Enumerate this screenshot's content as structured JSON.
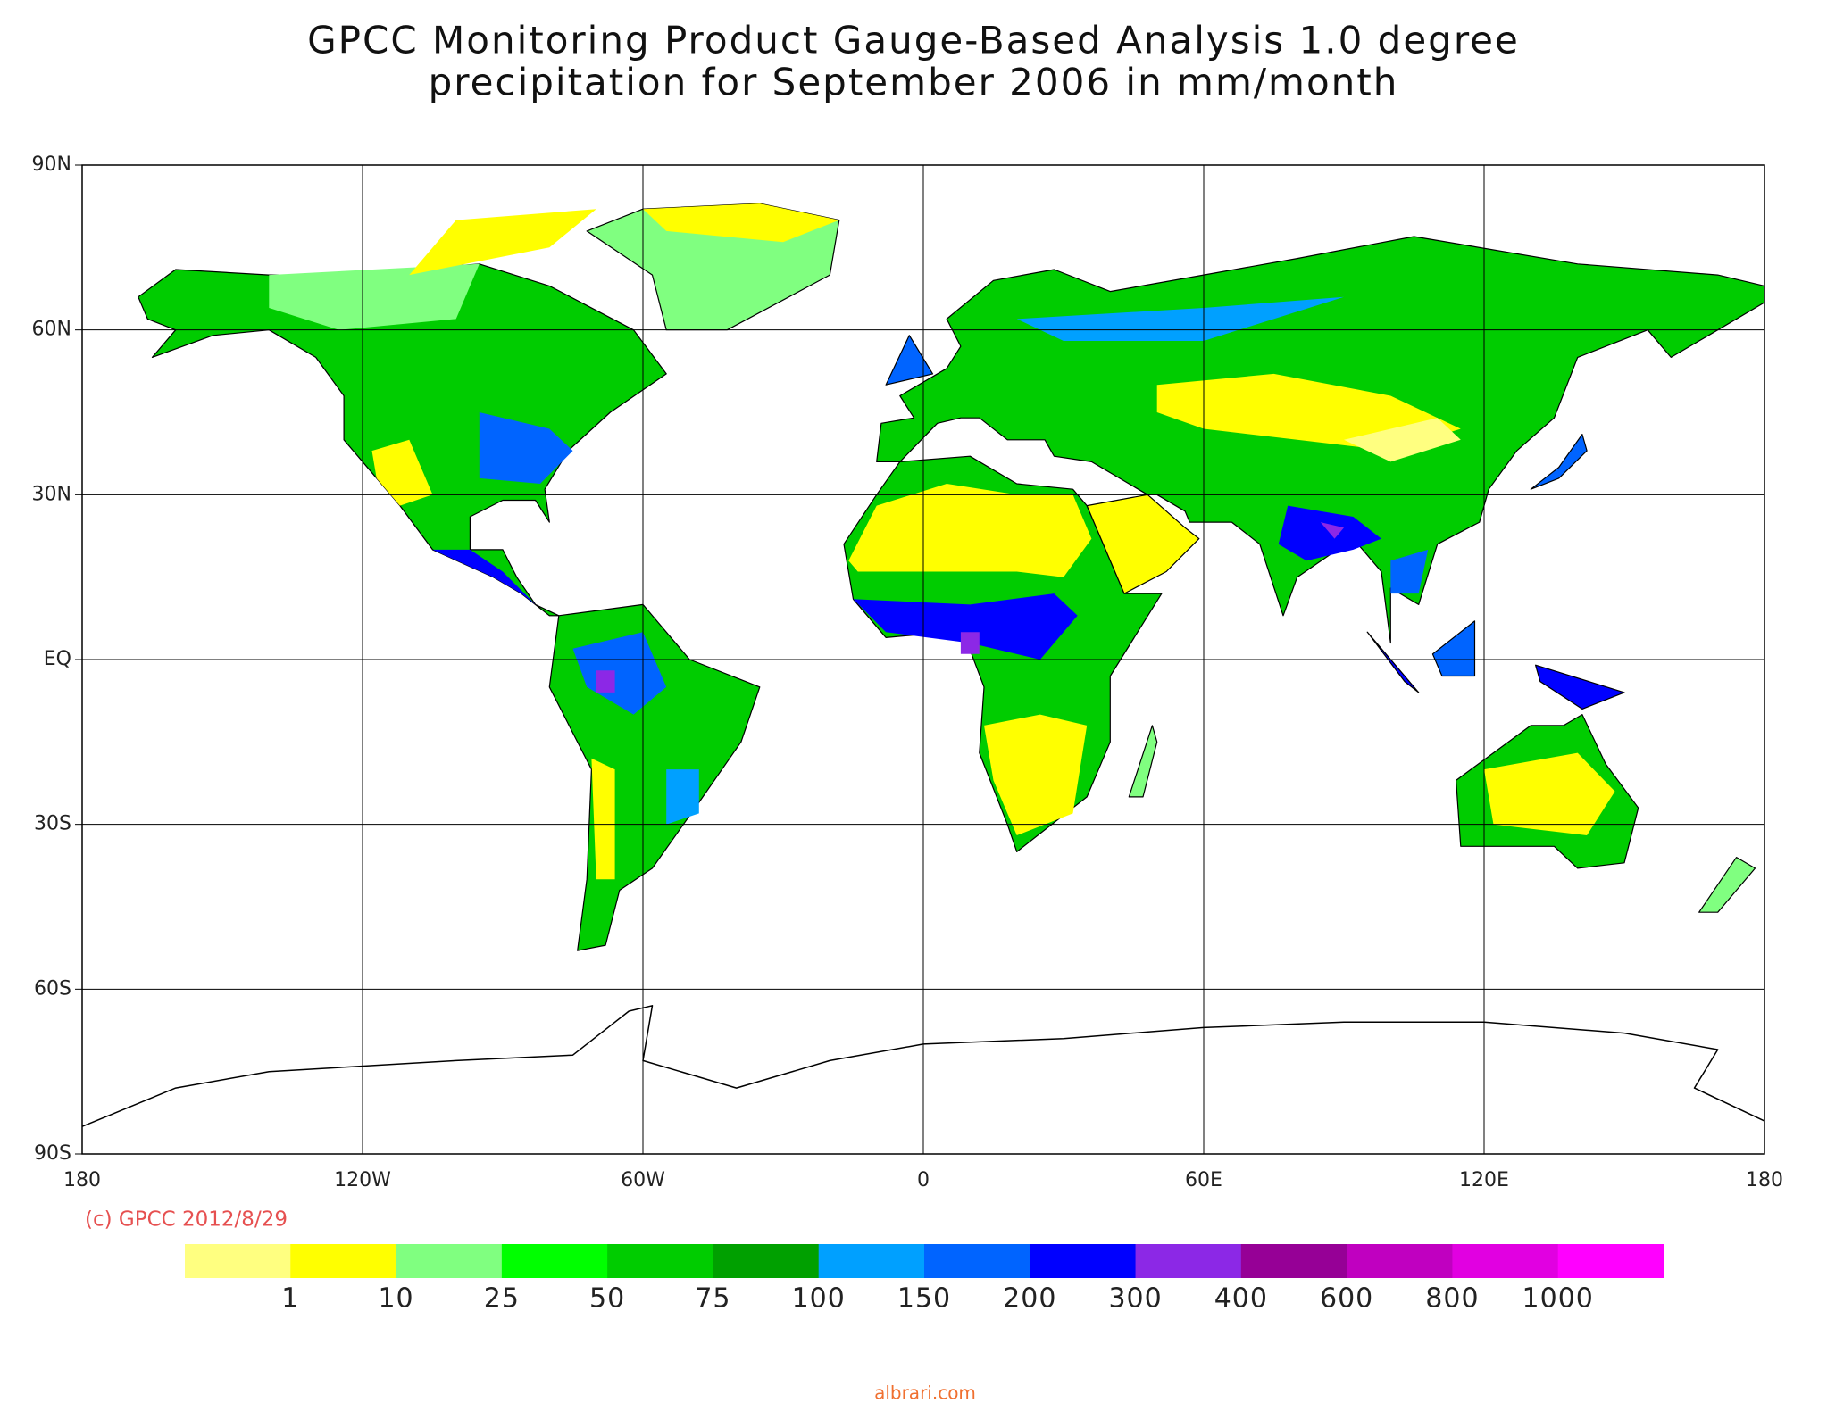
{
  "chart_data": {
    "type": "map",
    "title": [
      "GPCC Monitoring Product Gauge-Based Analysis 1.0 degree",
      "precipitation for September  2006 in mm/month"
    ],
    "xlim": [
      -180,
      180
    ],
    "ylim": [
      -90,
      90
    ],
    "xticks": [
      {
        "value": -180,
        "label": "180"
      },
      {
        "value": -120,
        "label": "120W"
      },
      {
        "value": -60,
        "label": "60W"
      },
      0,
      {
        "value": 60,
        "label": "60E"
      },
      {
        "value": 120,
        "label": "120E"
      },
      180
    ],
    "yticks": [
      {
        "value": 90,
        "label": "90N"
      },
      {
        "value": 60,
        "label": "60N"
      },
      {
        "value": 30,
        "label": "30N"
      },
      {
        "value": 0,
        "label": "EQ"
      },
      {
        "value": -30,
        "label": "30S"
      },
      {
        "value": -60,
        "label": "60S"
      },
      {
        "value": -90,
        "label": "90S"
      }
    ],
    "grid": true,
    "colorbar": {
      "colors": [
        "#ffff80",
        "#ffff00",
        "#80ff80",
        "#00ff00",
        "#00cc00",
        "#00a000",
        "#00a0ff",
        "#0064ff",
        "#0000ff",
        "#8c28e6",
        "#960096",
        "#c000c0",
        "#e100e1",
        "#ff00ff"
      ],
      "levels": [
        1,
        10,
        25,
        50,
        75,
        100,
        150,
        200,
        300,
        400,
        600,
        800,
        1000
      ]
    },
    "credit": "(c) GPCC 2012/8/29",
    "watermark": "albrari.com"
  }
}
